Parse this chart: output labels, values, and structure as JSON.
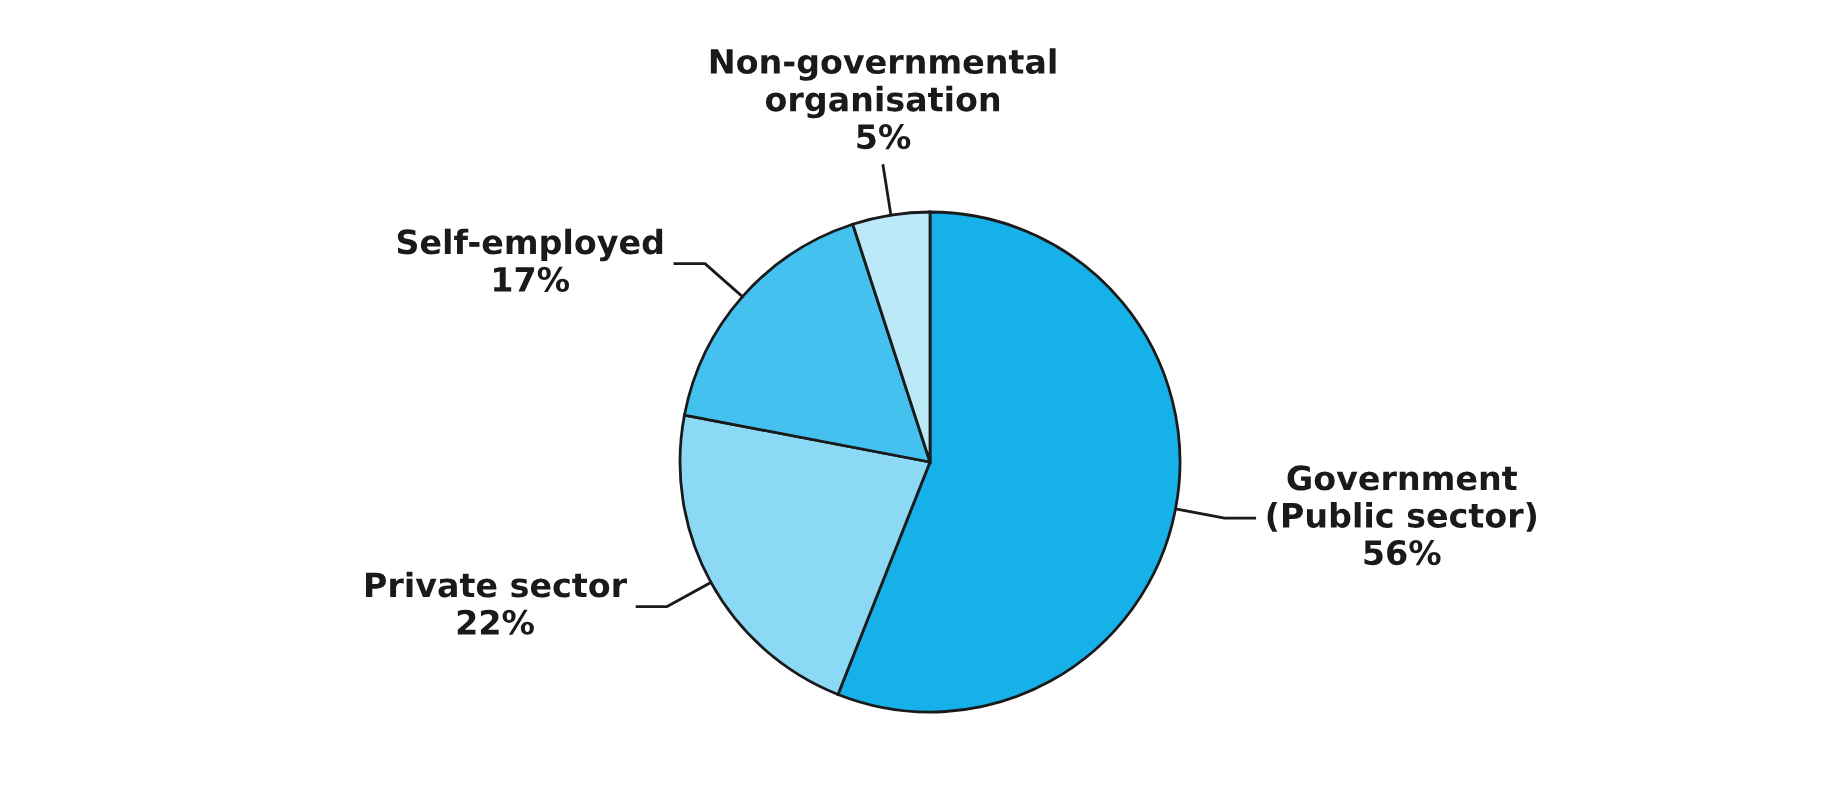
{
  "chart_data": {
    "type": "pie",
    "categories": [
      "Government\n(Public sector)",
      "Private sector",
      "Self-employed",
      "Non-governmental\norganisation"
    ],
    "values": [
      56,
      22,
      17,
      5
    ],
    "colors": [
      "#16b1e8",
      "#8bd9f5",
      "#44c1ee",
      "#bce9f8"
    ],
    "value_labels": [
      "56%",
      "22%",
      "17%",
      "5%"
    ]
  }
}
